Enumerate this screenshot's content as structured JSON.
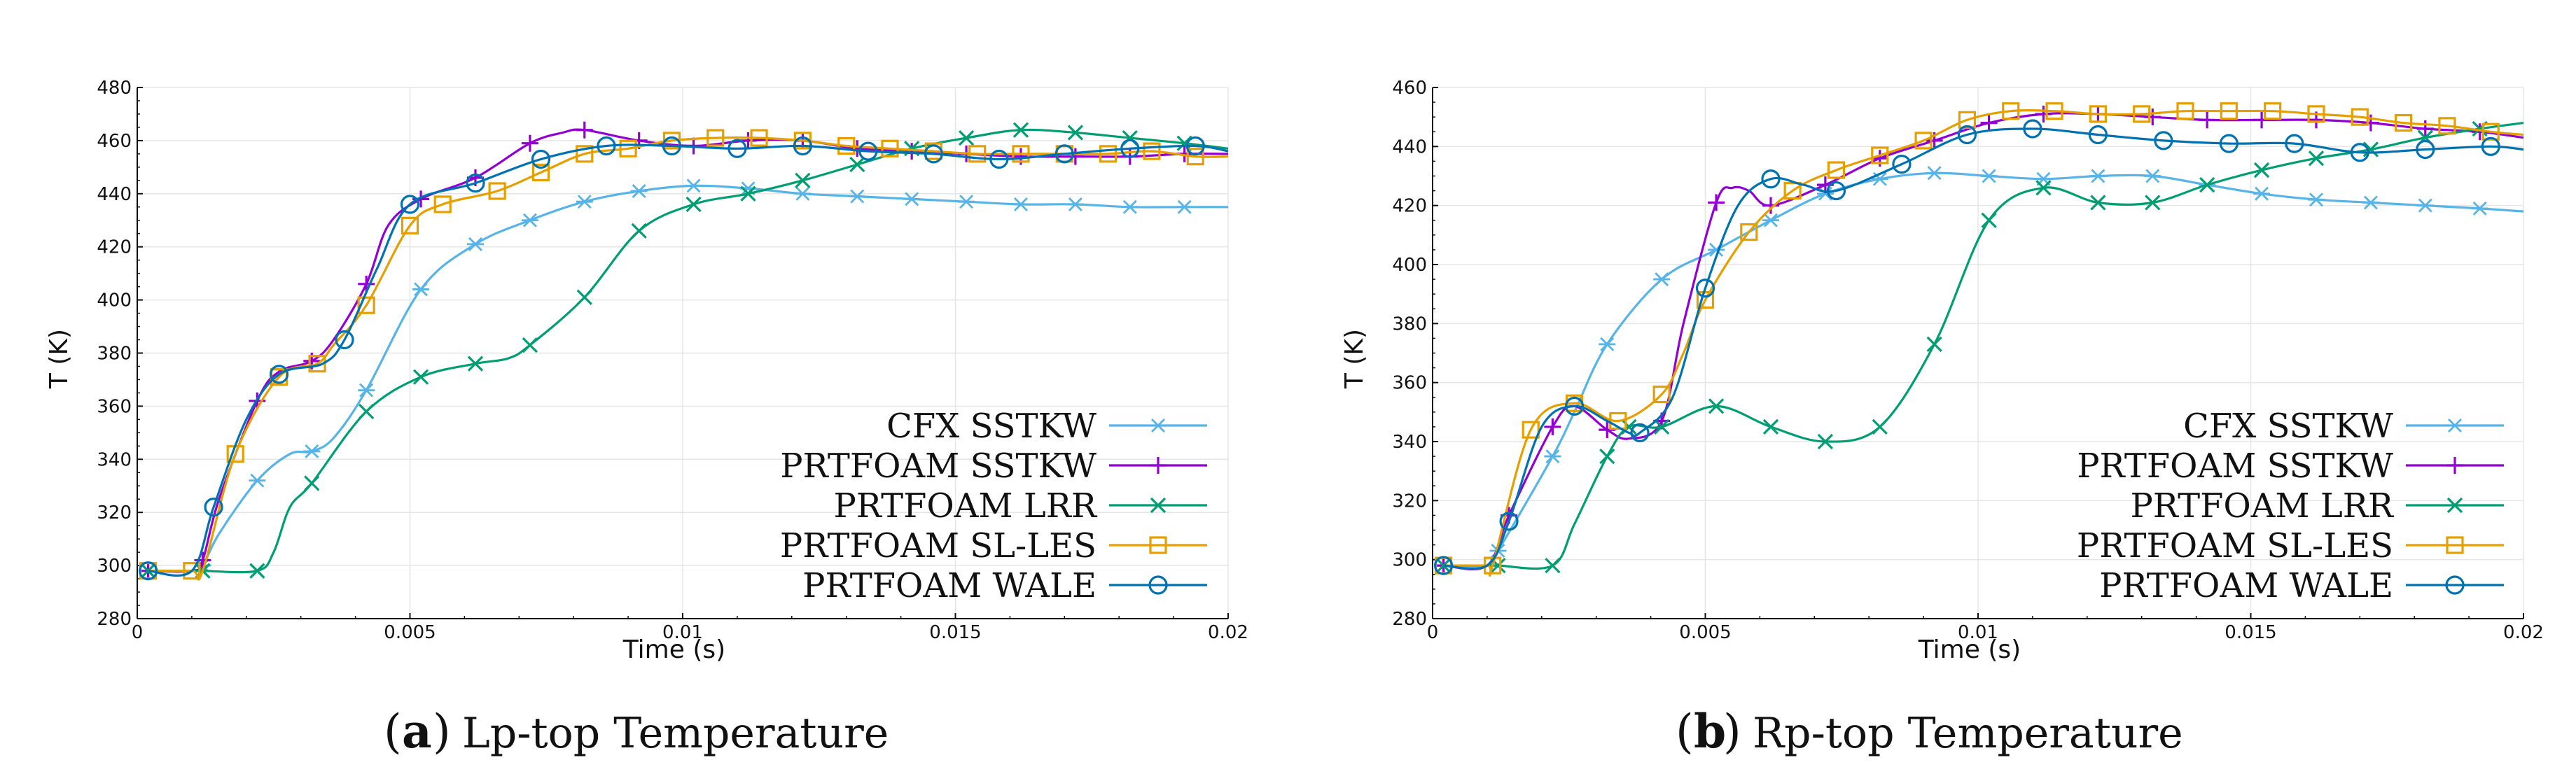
{
  "figure": {
    "captions": [
      {
        "tag": "a",
        "text": "Lp-top Temperature"
      },
      {
        "tag": "b",
        "text": "Rp-top Temperature"
      }
    ]
  },
  "colors": {
    "CFX SSTKW": "#56b4e9",
    "PRTFOAM SSTKW": "#9400d3",
    "PRTFOAM LRR": "#009e73",
    "PRTFOAM SL-LES": "#e69f00",
    "PRTFOAM WALE": "#0072b2",
    "grid": "#e6e6e6",
    "axis": "#111111"
  },
  "chart_data": [
    {
      "type": "line",
      "title": "",
      "xlabel": "Time (s)",
      "ylabel": "T (K)",
      "xlim": [
        0,
        0.02
      ],
      "ylim": [
        280,
        480
      ],
      "xticks": [
        0,
        0.005,
        0.01,
        0.015,
        0.02
      ],
      "xtick_labels": [
        "0",
        "0.005",
        "0.01",
        "0.015",
        "0.02"
      ],
      "yticks": [
        280,
        300,
        320,
        340,
        360,
        380,
        400,
        420,
        440,
        460,
        480
      ],
      "grid": true,
      "legend": "bottom-right",
      "series": [
        {
          "name": "CFX SSTKW",
          "marker": "asterisk",
          "x": [
            0.0002,
            0.001,
            0.0012,
            0.0015,
            0.0022,
            0.0028,
            0.0032,
            0.0036,
            0.0042,
            0.0052,
            0.0062,
            0.0072,
            0.0082,
            0.0092,
            0.0102,
            0.0112,
            0.0122,
            0.0132,
            0.0142,
            0.0152,
            0.0162,
            0.0172,
            0.0182,
            0.0192,
            0.02
          ],
          "y": [
            298,
            298,
            300,
            312,
            332,
            342,
            343,
            348,
            366,
            404,
            421,
            430,
            437,
            441,
            443,
            442,
            440,
            439,
            438,
            437,
            436,
            436,
            435,
            435,
            435
          ],
          "marker_idx": [
            0,
            2,
            4,
            6,
            8,
            9,
            10,
            11,
            12,
            13,
            14,
            15,
            16,
            17,
            18,
            19,
            20,
            21,
            22,
            23
          ]
        },
        {
          "name": "PRTFOAM SSTKW",
          "marker": "plus",
          "x": [
            0.0002,
            0.001,
            0.0012,
            0.0015,
            0.0022,
            0.0026,
            0.0032,
            0.0036,
            0.0042,
            0.0046,
            0.0052,
            0.0062,
            0.0072,
            0.0078,
            0.0082,
            0.0092,
            0.0102,
            0.0112,
            0.0122,
            0.0132,
            0.0142,
            0.0152,
            0.0162,
            0.0172,
            0.0182,
            0.0192,
            0.02
          ],
          "y": [
            298,
            298,
            302,
            325,
            362,
            373,
            377,
            385,
            406,
            428,
            438,
            446,
            459,
            463,
            464,
            460,
            458,
            460,
            460,
            457,
            456,
            455,
            454,
            454,
            454,
            455,
            455
          ],
          "marker_idx": [
            0,
            2,
            4,
            6,
            8,
            10,
            11,
            12,
            14,
            15,
            16,
            17,
            18,
            19,
            20,
            21,
            22,
            23,
            24,
            25
          ]
        },
        {
          "name": "PRTFOAM LRR",
          "marker": "x",
          "x": [
            0.0002,
            0.001,
            0.0012,
            0.0022,
            0.0025,
            0.0028,
            0.0032,
            0.0042,
            0.0052,
            0.0062,
            0.0068,
            0.0072,
            0.0082,
            0.0092,
            0.0102,
            0.0112,
            0.0122,
            0.0132,
            0.0142,
            0.0152,
            0.0162,
            0.0172,
            0.0182,
            0.0192,
            0.02
          ],
          "y": [
            298,
            298,
            298,
            298,
            305,
            322,
            331,
            358,
            371,
            376,
            378,
            383,
            401,
            426,
            436,
            440,
            445,
            451,
            457,
            461,
            464,
            463,
            461,
            459,
            457
          ],
          "marker_idx": [
            0,
            2,
            3,
            6,
            7,
            8,
            9,
            11,
            12,
            13,
            14,
            15,
            16,
            17,
            18,
            19,
            20,
            21,
            22,
            23
          ]
        },
        {
          "name": "PRTFOAM SL-LES",
          "marker": "square",
          "x": [
            0.0002,
            0.001,
            0.0012,
            0.0018,
            0.0026,
            0.0033,
            0.0036,
            0.0042,
            0.005,
            0.0056,
            0.0066,
            0.0074,
            0.0082,
            0.009,
            0.0098,
            0.0106,
            0.0114,
            0.0122,
            0.013,
            0.0138,
            0.0146,
            0.0154,
            0.0162,
            0.017,
            0.0178,
            0.0186,
            0.0194,
            0.02
          ],
          "y": [
            298,
            298,
            298,
            342,
            371,
            376,
            383,
            398,
            428,
            436,
            441,
            448,
            455,
            457,
            460,
            461,
            461,
            460,
            458,
            457,
            456,
            455,
            455,
            455,
            455,
            456,
            454,
            454
          ],
          "marker_idx": [
            0,
            1,
            3,
            4,
            5,
            7,
            8,
            9,
            10,
            11,
            12,
            13,
            14,
            15,
            16,
            17,
            18,
            19,
            20,
            21,
            22,
            23,
            24,
            25,
            26
          ]
        },
        {
          "name": "PRTFOAM WALE",
          "marker": "circle",
          "x": [
            0.0002,
            0.001,
            0.0014,
            0.002,
            0.0026,
            0.0034,
            0.0038,
            0.0044,
            0.005,
            0.0062,
            0.0074,
            0.0086,
            0.0098,
            0.011,
            0.0122,
            0.0134,
            0.0146,
            0.0158,
            0.017,
            0.0182,
            0.0194,
            0.02
          ],
          "y": [
            298,
            298,
            322,
            355,
            372,
            376,
            385,
            412,
            436,
            444,
            453,
            458,
            458,
            457,
            458,
            456,
            455,
            453,
            455,
            457,
            458,
            456
          ],
          "marker_idx": [
            0,
            2,
            4,
            6,
            8,
            9,
            10,
            11,
            12,
            13,
            14,
            15,
            16,
            17,
            18,
            19,
            20
          ]
        }
      ]
    },
    {
      "type": "line",
      "title": "",
      "xlabel": "Time (s)",
      "ylabel": "T (K)",
      "xlim": [
        0,
        0.02
      ],
      "ylim": [
        280,
        460
      ],
      "xticks": [
        0,
        0.005,
        0.01,
        0.015,
        0.02
      ],
      "xtick_labels": [
        "0",
        "0.005",
        "0.01",
        "0.015",
        "0.02"
      ],
      "yticks": [
        280,
        300,
        320,
        340,
        360,
        380,
        400,
        420,
        440,
        460
      ],
      "grid": true,
      "legend": "bottom-right",
      "series": [
        {
          "name": "CFX SSTKW",
          "marker": "asterisk",
          "x": [
            0.0002,
            0.001,
            0.0012,
            0.0022,
            0.0026,
            0.0032,
            0.0042,
            0.0052,
            0.0062,
            0.0072,
            0.0082,
            0.0092,
            0.0102,
            0.0112,
            0.0122,
            0.0132,
            0.0142,
            0.0152,
            0.0162,
            0.0172,
            0.0182,
            0.0192,
            0.02
          ],
          "y": [
            298,
            298,
            303,
            335,
            350,
            373,
            395,
            405,
            415,
            424,
            429,
            431,
            430,
            429,
            430,
            430,
            427,
            424,
            422,
            421,
            420,
            419,
            418
          ],
          "marker_idx": [
            0,
            2,
            3,
            5,
            6,
            7,
            8,
            9,
            10,
            11,
            12,
            13,
            14,
            15,
            16,
            17,
            18,
            19,
            20,
            21
          ]
        },
        {
          "name": "PRTFOAM SSTKW",
          "marker": "plus",
          "x": [
            0.0002,
            0.001,
            0.0014,
            0.0022,
            0.0026,
            0.0032,
            0.0036,
            0.0042,
            0.0046,
            0.0052,
            0.0055,
            0.0058,
            0.0062,
            0.0072,
            0.0082,
            0.0092,
            0.0102,
            0.0112,
            0.0122,
            0.0132,
            0.0142,
            0.0152,
            0.0162,
            0.0172,
            0.0182,
            0.0192,
            0.02
          ],
          "y": [
            298,
            298,
            315,
            345,
            352,
            344,
            341,
            347,
            380,
            421,
            426,
            425,
            420,
            427,
            436,
            442,
            448,
            451,
            451,
            450,
            449,
            449,
            449,
            448,
            446,
            445,
            443
          ],
          "marker_idx": [
            0,
            2,
            3,
            5,
            7,
            9,
            12,
            13,
            14,
            15,
            16,
            17,
            18,
            19,
            20,
            21,
            22,
            23,
            24,
            25
          ]
        },
        {
          "name": "PRTFOAM LRR",
          "marker": "x",
          "x": [
            0.0002,
            0.001,
            0.0012,
            0.0022,
            0.0026,
            0.0032,
            0.0036,
            0.0042,
            0.0052,
            0.0062,
            0.0072,
            0.0082,
            0.0092,
            0.0102,
            0.0112,
            0.0122,
            0.0132,
            0.0142,
            0.0152,
            0.0162,
            0.0172,
            0.0182,
            0.0192,
            0.02
          ],
          "y": [
            298,
            298,
            298,
            298,
            312,
            335,
            345,
            345,
            352,
            345,
            340,
            345,
            373,
            415,
            426,
            421,
            421,
            427,
            432,
            436,
            439,
            443,
            446,
            448
          ],
          "marker_idx": [
            0,
            2,
            3,
            5,
            6,
            7,
            8,
            9,
            10,
            11,
            12,
            13,
            14,
            15,
            16,
            17,
            18,
            19,
            20,
            21,
            22
          ]
        },
        {
          "name": "PRTFOAM SL-LES",
          "marker": "square",
          "x": [
            0.0002,
            0.001,
            0.0011,
            0.0018,
            0.0026,
            0.0034,
            0.0042,
            0.0046,
            0.005,
            0.0058,
            0.0066,
            0.0074,
            0.0082,
            0.009,
            0.0098,
            0.0106,
            0.0114,
            0.0122,
            0.013,
            0.0138,
            0.0146,
            0.0154,
            0.0162,
            0.017,
            0.0178,
            0.0186,
            0.0194,
            0.02
          ],
          "y": [
            298,
            298,
            298,
            344,
            353,
            347,
            356,
            370,
            388,
            411,
            425,
            432,
            437,
            442,
            449,
            452,
            452,
            451,
            451,
            452,
            452,
            452,
            451,
            450,
            448,
            447,
            445,
            444
          ],
          "marker_idx": [
            0,
            2,
            3,
            4,
            5,
            6,
            8,
            9,
            10,
            11,
            12,
            13,
            14,
            15,
            16,
            17,
            18,
            19,
            20,
            21,
            22,
            23,
            24,
            25,
            26
          ]
        },
        {
          "name": "PRTFOAM WALE",
          "marker": "circle",
          "x": [
            0.0002,
            0.001,
            0.0014,
            0.002,
            0.0026,
            0.0032,
            0.0036,
            0.0038,
            0.0044,
            0.005,
            0.0056,
            0.0062,
            0.0068,
            0.0074,
            0.0086,
            0.0098,
            0.011,
            0.0122,
            0.0134,
            0.0146,
            0.0158,
            0.017,
            0.0182,
            0.0194,
            0.02
          ],
          "y": [
            298,
            298,
            313,
            345,
            352,
            347,
            343,
            343,
            355,
            392,
            420,
            429,
            427,
            425,
            434,
            444,
            446,
            444,
            442,
            441,
            441,
            438,
            439,
            440,
            439
          ],
          "marker_idx": [
            0,
            2,
            4,
            7,
            9,
            11,
            13,
            14,
            15,
            16,
            17,
            18,
            19,
            20,
            21,
            22,
            23
          ]
        }
      ]
    }
  ]
}
